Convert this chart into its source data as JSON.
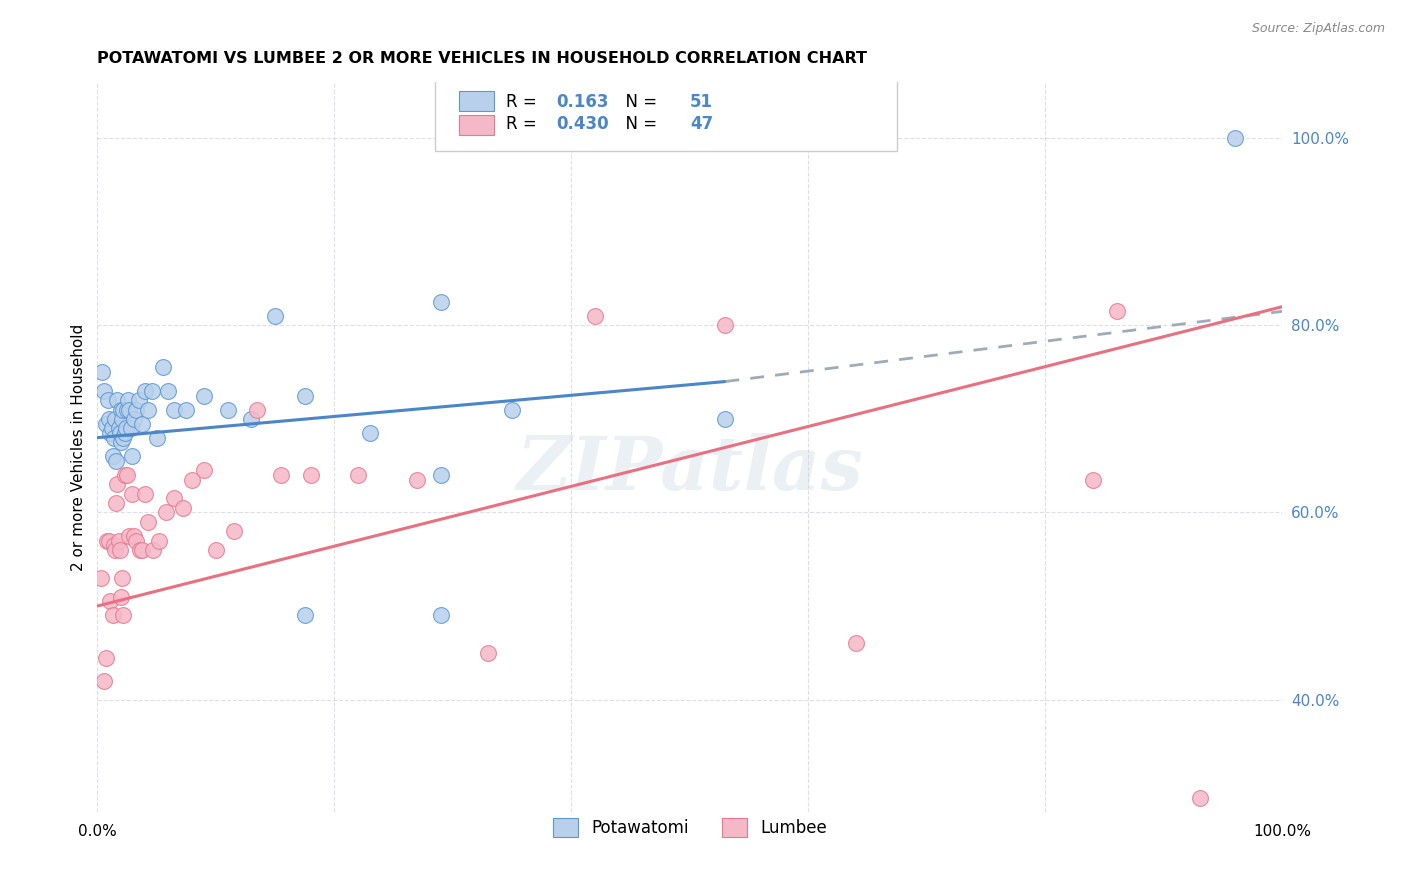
{
  "title": "POTAWATOMI VS LUMBEE 2 OR MORE VEHICLES IN HOUSEHOLD CORRELATION CHART",
  "source": "Source: ZipAtlas.com",
  "ylabel": "2 or more Vehicles in Household",
  "xlim": [
    0,
    1
  ],
  "ylim": [
    0.28,
    1.06
  ],
  "yticks": [
    0.4,
    0.6,
    0.8,
    1.0
  ],
  "ytick_labels": [
    "40.0%",
    "60.0%",
    "80.0%",
    "100.0%"
  ],
  "watermark": "ZIPatlas",
  "legend_R1": "0.163",
  "legend_N1": "51",
  "legend_R2": "0.430",
  "legend_N2": "47",
  "blue_fill": "#b8d0ea",
  "pink_fill": "#f5b8c8",
  "blue_edge": "#5a96d8",
  "pink_edge": "#e87890",
  "blue_line_color": "#4a86c8",
  "pink_line_color": "#e87080",
  "dashed_line_color": "#a0aab8",
  "right_tick_color": "#4a86c8",
  "potawatomi_x": [
    0.004,
    0.006,
    0.007,
    0.009,
    0.01,
    0.011,
    0.012,
    0.013,
    0.014,
    0.015,
    0.016,
    0.017,
    0.018,
    0.019,
    0.02,
    0.02,
    0.021,
    0.022,
    0.022,
    0.023,
    0.024,
    0.025,
    0.026,
    0.027,
    0.028,
    0.029,
    0.031,
    0.033,
    0.035,
    0.038,
    0.04,
    0.043,
    0.046,
    0.05,
    0.055,
    0.06,
    0.065,
    0.075,
    0.09,
    0.11,
    0.13,
    0.15,
    0.175,
    0.23,
    0.29,
    0.35,
    0.29,
    0.175,
    0.29,
    0.53,
    0.96
  ],
  "potawatomi_y": [
    0.75,
    0.73,
    0.695,
    0.72,
    0.7,
    0.685,
    0.69,
    0.66,
    0.68,
    0.7,
    0.655,
    0.72,
    0.69,
    0.685,
    0.675,
    0.71,
    0.7,
    0.68,
    0.71,
    0.685,
    0.69,
    0.71,
    0.72,
    0.71,
    0.69,
    0.66,
    0.7,
    0.71,
    0.72,
    0.695,
    0.73,
    0.71,
    0.73,
    0.68,
    0.755,
    0.73,
    0.71,
    0.71,
    0.725,
    0.71,
    0.7,
    0.81,
    0.725,
    0.685,
    0.825,
    0.71,
    0.64,
    0.49,
    0.49,
    0.7,
    1.0
  ],
  "lumbee_x": [
    0.003,
    0.006,
    0.007,
    0.008,
    0.01,
    0.011,
    0.013,
    0.014,
    0.015,
    0.016,
    0.017,
    0.018,
    0.019,
    0.02,
    0.021,
    0.022,
    0.023,
    0.025,
    0.027,
    0.029,
    0.031,
    0.033,
    0.036,
    0.038,
    0.04,
    0.043,
    0.047,
    0.052,
    0.058,
    0.065,
    0.072,
    0.08,
    0.09,
    0.1,
    0.115,
    0.135,
    0.155,
    0.18,
    0.22,
    0.27,
    0.33,
    0.42,
    0.53,
    0.64,
    0.84,
    0.86,
    0.93
  ],
  "lumbee_y": [
    0.53,
    0.42,
    0.445,
    0.57,
    0.57,
    0.505,
    0.49,
    0.565,
    0.56,
    0.61,
    0.63,
    0.57,
    0.56,
    0.51,
    0.53,
    0.49,
    0.64,
    0.64,
    0.575,
    0.62,
    0.575,
    0.57,
    0.56,
    0.56,
    0.62,
    0.59,
    0.56,
    0.57,
    0.6,
    0.615,
    0.605,
    0.635,
    0.645,
    0.56,
    0.58,
    0.71,
    0.64,
    0.64,
    0.64,
    0.635,
    0.45,
    0.81,
    0.8,
    0.46,
    0.635,
    0.815,
    0.295
  ],
  "blue_line_x": [
    0.0,
    0.53
  ],
  "blue_line_y_start": 0.68,
  "blue_line_y_end": 0.74,
  "dashed_line_x": [
    0.53,
    1.0
  ],
  "dashed_line_y_start": 0.74,
  "dashed_line_y_end": 0.815,
  "pink_line_x": [
    0.0,
    1.0
  ],
  "pink_line_y_start": 0.5,
  "pink_line_y_end": 0.82
}
